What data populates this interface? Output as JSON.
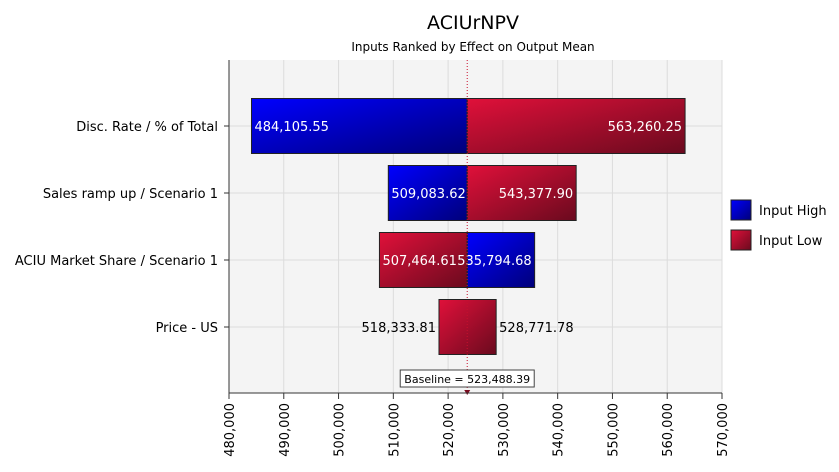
{
  "chart_data": {
    "type": "bar",
    "subtype": "tornado",
    "title": "ACIUrNPV",
    "subtitle": "Inputs Ranked by Effect on Output Mean",
    "xlim": [
      480000,
      570000
    ],
    "xticks": [
      "480,000",
      "490,000",
      "500,000",
      "510,000",
      "520,000",
      "530,000",
      "540,000",
      "550,000",
      "560,000",
      "570,000"
    ],
    "xtick_values": [
      480000,
      490000,
      500000,
      510000,
      520000,
      530000,
      540000,
      550000,
      560000,
      570000
    ],
    "baseline": 523488.39,
    "baseline_label": "Baseline = 523,488.39",
    "grid": true,
    "legend_position": "right",
    "legend": [
      {
        "name": "Input High",
        "color": "#0000cc"
      },
      {
        "name": "Input Low",
        "color": "#c8102e"
      }
    ],
    "categories": [
      "Disc. Rate / % of Total",
      "Sales ramp up / Scenario 1",
      "ACIU Market Share / Scenario 1",
      "Price - US"
    ],
    "bars": [
      {
        "low_end": 484105.55,
        "low_label": "484,105.55",
        "high_end": 563260.25,
        "high_label": "563,260.25",
        "left_series": "Input High",
        "right_series": "Input Low",
        "labels_inside": true
      },
      {
        "low_end": 509083.62,
        "low_label": "509,083.62",
        "high_end": 543377.9,
        "high_label": "543,377.90",
        "left_series": "Input High",
        "right_series": "Input Low",
        "labels_inside": true
      },
      {
        "low_end": 507464.61,
        "low_label": "507,464.61",
        "high_end": 535794.68,
        "high_label": "535,794.68",
        "left_series": "Input Low",
        "right_series": "Input High",
        "labels_inside": true
      },
      {
        "low_end": 518333.81,
        "low_label": "518,333.81",
        "high_end": 528771.78,
        "high_label": "528,771.78",
        "left_series": "Input Low",
        "right_series": "Input Low",
        "labels_inside": false
      }
    ]
  }
}
